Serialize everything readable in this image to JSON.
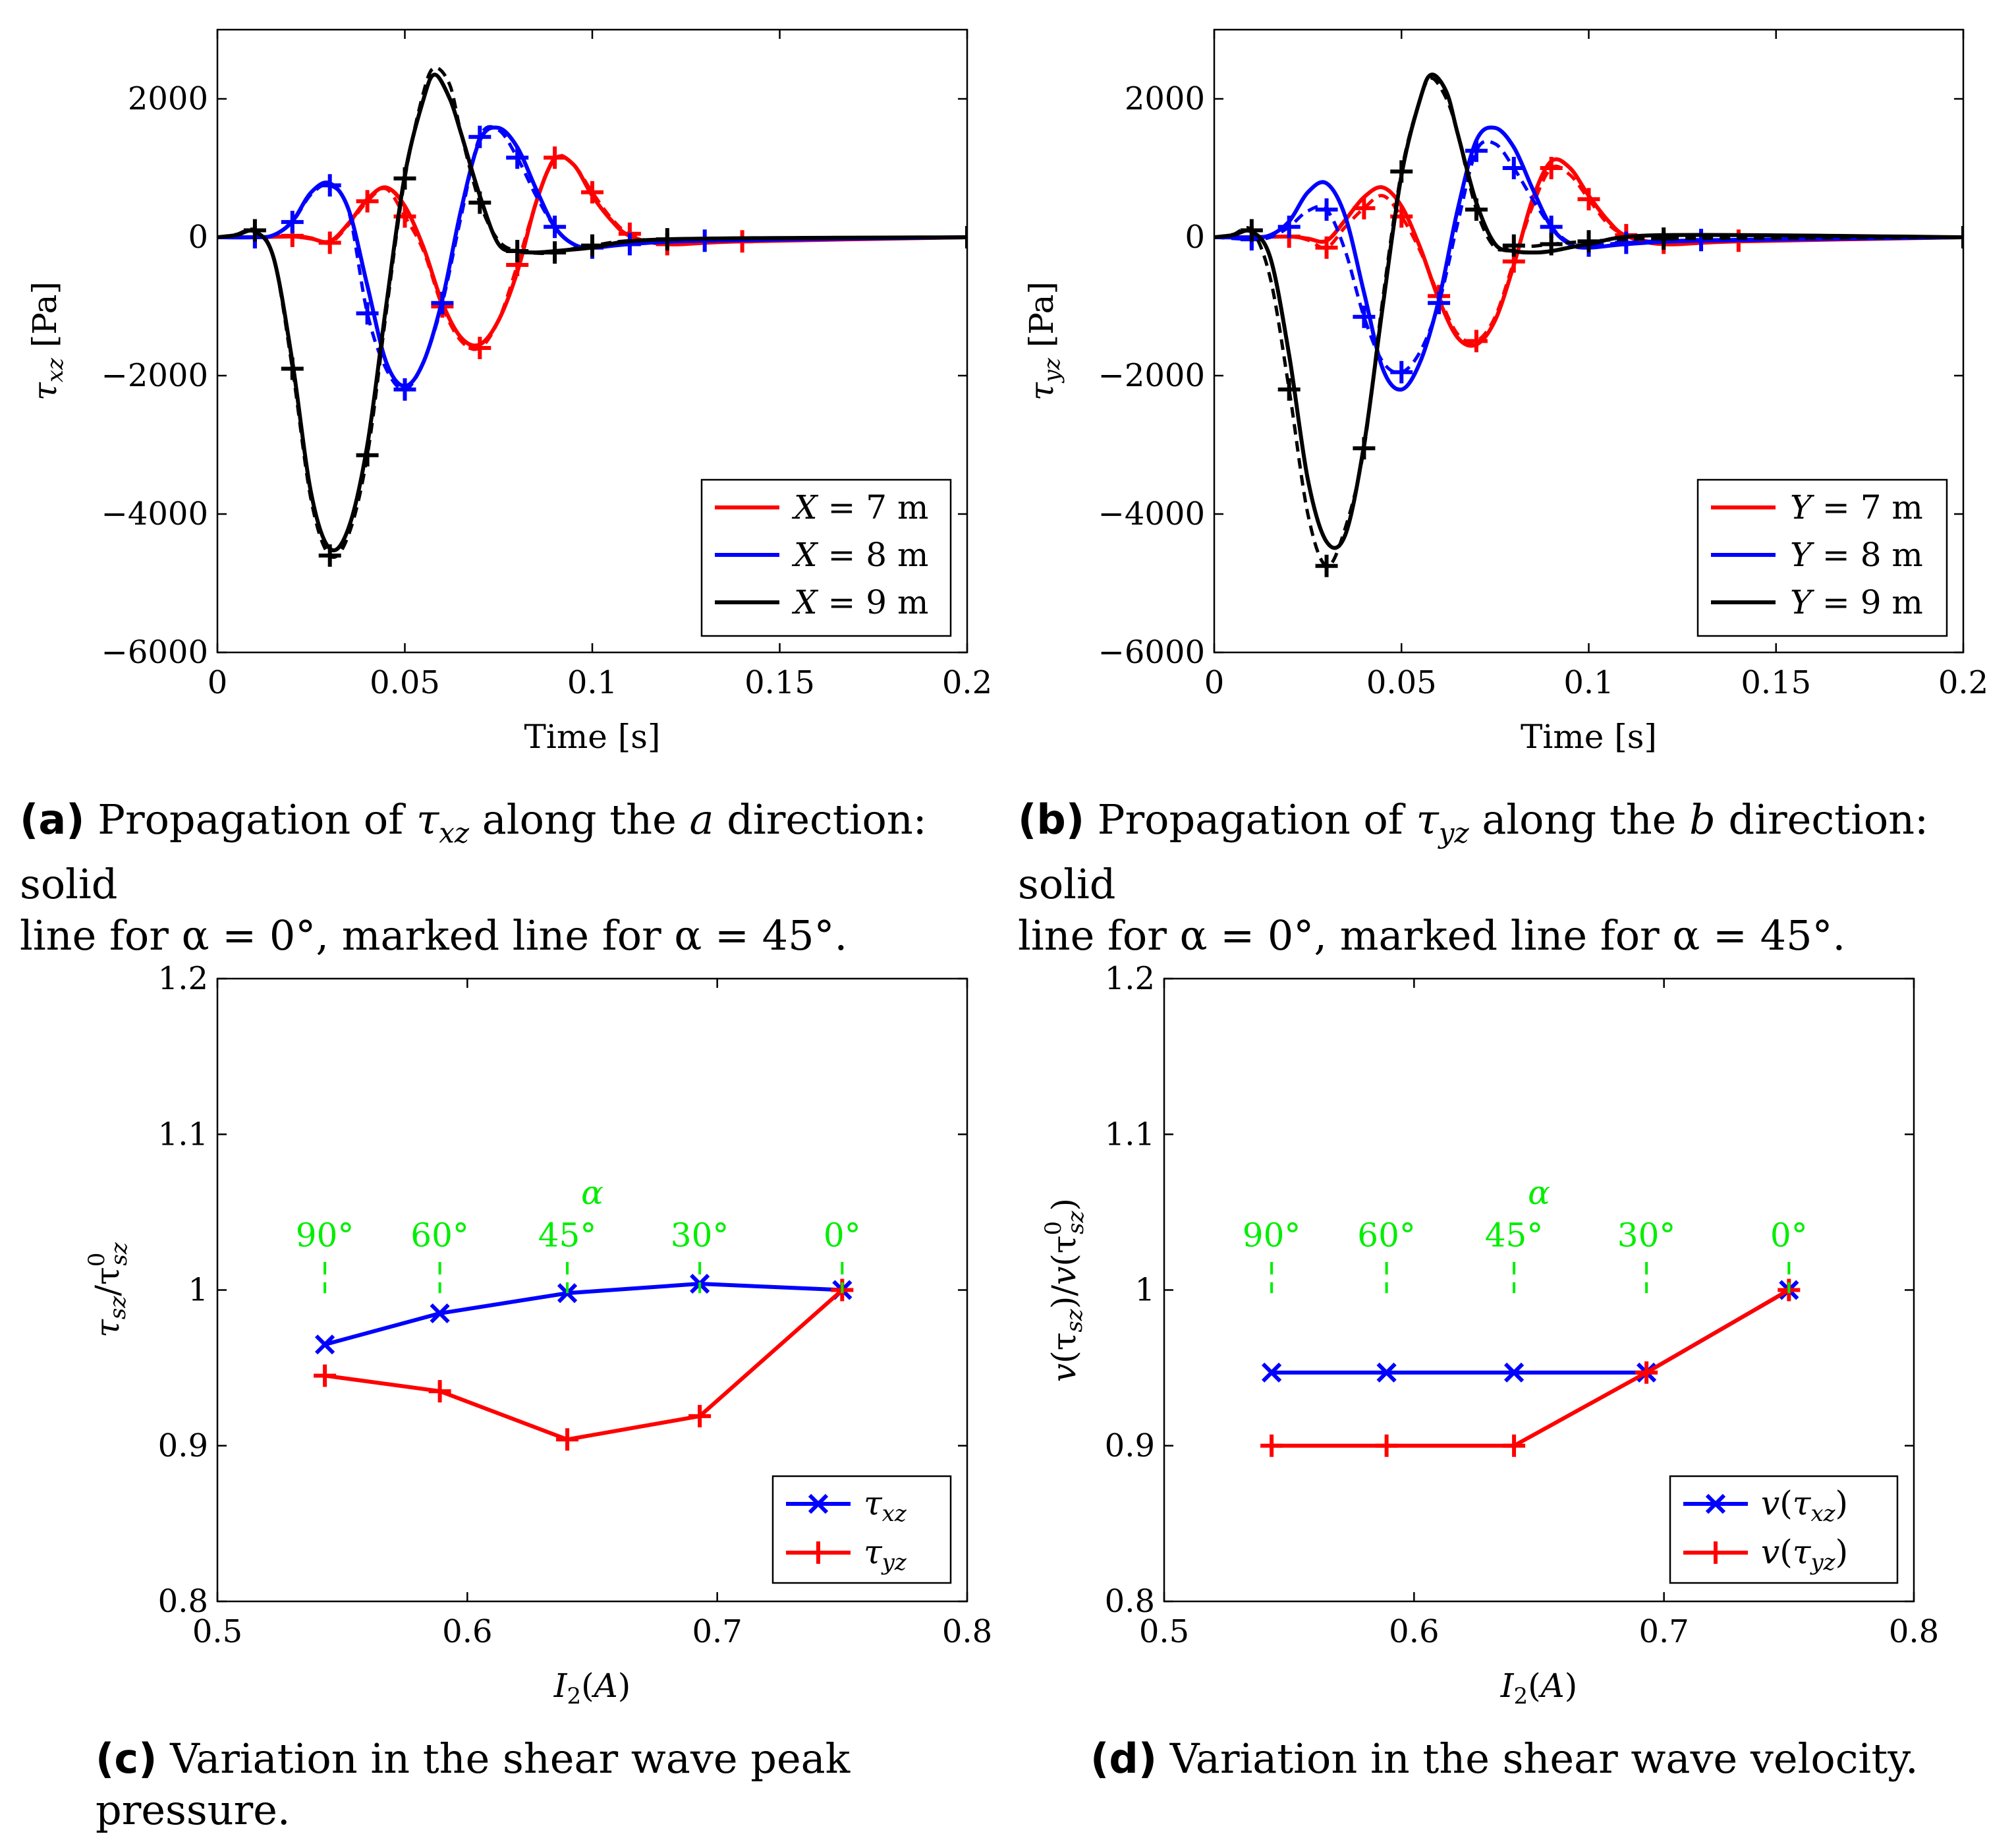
{
  "colors": {
    "red": "#ff0000",
    "blue": "#0000ff",
    "black": "#000000",
    "green": "#00ee00"
  },
  "chart_data": [
    {
      "id": "a",
      "type": "line",
      "xlabel": "Time [s]",
      "ylabel": "τ_xz [Pa]",
      "ylabel_main": "τ",
      "ylabel_sub": "xz",
      "ylabel_unit": "[Pa]",
      "xlim": [
        0,
        0.2
      ],
      "ylim": [
        -6000,
        3000
      ],
      "xticks": [
        0,
        0.05,
        0.1,
        0.15,
        0.2
      ],
      "xtick_labels": [
        "0",
        "0.05",
        "0.1",
        "0.15",
        "0.2"
      ],
      "yticks": [
        -6000,
        -4000,
        -2000,
        0,
        2000
      ],
      "ytick_labels": [
        "−6000",
        "−4000",
        "−2000",
        "0",
        "2000"
      ],
      "legend_position": "bottom-right",
      "legend": [
        "X = 7 m",
        "X = 8 m",
        "X = 9 m"
      ],
      "legend_var": "X",
      "legend_vals": [
        "= 7 m",
        "= 8 m",
        "= 9 m"
      ],
      "series": [
        {
          "name": "X = 7 m, α = 0°",
          "color": "red",
          "style": "solid",
          "x": [
            0,
            0.01,
            0.02,
            0.025,
            0.03,
            0.035,
            0.04,
            0.045,
            0.05,
            0.055,
            0.06,
            0.065,
            0.07,
            0.075,
            0.08,
            0.085,
            0.09,
            0.095,
            0.1,
            0.105,
            0.11,
            0.12,
            0.14,
            0.2
          ],
          "y": [
            0,
            0,
            10,
            -20,
            -60,
            200,
            550,
            720,
            450,
            -150,
            -950,
            -1450,
            -1550,
            -1200,
            -500,
            500,
            1130,
            1050,
            600,
            250,
            20,
            -100,
            -60,
            0
          ]
        },
        {
          "name": "X = 7 m, α = 45°",
          "color": "red",
          "style": "dashed",
          "marker": "+",
          "x": [
            0,
            0.01,
            0.02,
            0.025,
            0.03,
            0.035,
            0.04,
            0.045,
            0.05,
            0.055,
            0.06,
            0.065,
            0.07,
            0.075,
            0.08,
            0.085,
            0.09,
            0.095,
            0.1,
            0.105,
            0.11,
            0.12,
            0.14,
            0.2
          ],
          "y": [
            0,
            0,
            20,
            -10,
            -80,
            180,
            520,
            700,
            300,
            -200,
            -1000,
            -1500,
            -1600,
            -1200,
            -400,
            500,
            1150,
            1050,
            650,
            280,
            50,
            -100,
            -60,
            0
          ]
        },
        {
          "name": "X = 8 m, α = 0°",
          "color": "blue",
          "style": "solid",
          "x": [
            0,
            0.01,
            0.015,
            0.02,
            0.025,
            0.03,
            0.035,
            0.04,
            0.045,
            0.05,
            0.055,
            0.06,
            0.065,
            0.07,
            0.075,
            0.08,
            0.085,
            0.09,
            0.095,
            0.1,
            0.11,
            0.13,
            0.2
          ],
          "y": [
            0,
            0,
            30,
            230,
            650,
            780,
            400,
            -700,
            -1800,
            -2150,
            -1800,
            -900,
            400,
            1400,
            1580,
            1300,
            700,
            150,
            -100,
            -150,
            -100,
            -50,
            0
          ]
        },
        {
          "name": "X = 8 m, α = 45°",
          "color": "blue",
          "style": "dashed",
          "marker": "+",
          "x": [
            0,
            0.01,
            0.015,
            0.02,
            0.025,
            0.03,
            0.035,
            0.04,
            0.045,
            0.05,
            0.055,
            0.06,
            0.065,
            0.07,
            0.075,
            0.08,
            0.085,
            0.09,
            0.095,
            0.1,
            0.11,
            0.13,
            0.2
          ],
          "y": [
            0,
            0,
            30,
            220,
            620,
            750,
            380,
            -1100,
            -1900,
            -2200,
            -1800,
            -950,
            300,
            1450,
            1550,
            1150,
            600,
            150,
            -100,
            -150,
            -100,
            -50,
            0
          ]
        },
        {
          "name": "X = 9 m, α = 0°",
          "color": "black",
          "style": "solid",
          "x": [
            0,
            0.005,
            0.01,
            0.015,
            0.02,
            0.025,
            0.03,
            0.035,
            0.04,
            0.045,
            0.05,
            0.055,
            0.058,
            0.062,
            0.065,
            0.07,
            0.075,
            0.08,
            0.085,
            0.09,
            0.1,
            0.12,
            0.2
          ],
          "y": [
            0,
            30,
            80,
            -300,
            -1800,
            -3700,
            -4500,
            -4200,
            -3000,
            -1000,
            900,
            2000,
            2350,
            2000,
            1500,
            600,
            -100,
            -200,
            -220,
            -200,
            -150,
            -30,
            0
          ]
        },
        {
          "name": "X = 9 m, α = 45°",
          "color": "black",
          "style": "dashed",
          "marker": "+",
          "x": [
            0,
            0.005,
            0.01,
            0.015,
            0.02,
            0.025,
            0.03,
            0.035,
            0.04,
            0.045,
            0.05,
            0.055,
            0.058,
            0.062,
            0.065,
            0.07,
            0.075,
            0.08,
            0.085,
            0.09,
            0.1,
            0.12,
            0.2
          ],
          "y": [
            0,
            40,
            100,
            -300,
            -1900,
            -3800,
            -4600,
            -4300,
            -3150,
            -1100,
            850,
            2100,
            2450,
            2200,
            1500,
            500,
            -50,
            -200,
            -230,
            -220,
            -120,
            -30,
            0
          ]
        }
      ]
    },
    {
      "id": "b",
      "type": "line",
      "xlabel": "Time [s]",
      "ylabel": "τ_yz [Pa]",
      "ylabel_main": "τ",
      "ylabel_sub": "yz",
      "ylabel_unit": "[Pa]",
      "xlim": [
        0,
        0.2
      ],
      "ylim": [
        -6000,
        3000
      ],
      "xticks": [
        0,
        0.05,
        0.1,
        0.15,
        0.2
      ],
      "xtick_labels": [
        "0",
        "0.05",
        "0.1",
        "0.15",
        "0.2"
      ],
      "yticks": [
        -6000,
        -4000,
        -2000,
        0,
        2000
      ],
      "ytick_labels": [
        "−6000",
        "−4000",
        "−2000",
        "0",
        "2000"
      ],
      "legend_position": "bottom-right",
      "legend": [
        "Y = 7 m",
        "Y = 8 m",
        "Y = 9 m"
      ],
      "legend_var": "Y",
      "legend_vals": [
        "= 7 m",
        "= 8 m",
        "= 9 m"
      ],
      "series": [
        {
          "name": "Y = 7 m, α = 0°",
          "color": "red",
          "style": "solid",
          "x": [
            0,
            0.01,
            0.02,
            0.025,
            0.03,
            0.035,
            0.04,
            0.045,
            0.05,
            0.055,
            0.06,
            0.065,
            0.07,
            0.075,
            0.08,
            0.085,
            0.09,
            0.095,
            0.1,
            0.105,
            0.11,
            0.12,
            0.14,
            0.2
          ],
          "y": [
            0,
            0,
            10,
            -20,
            -50,
            250,
            580,
            720,
            450,
            -150,
            -900,
            -1450,
            -1550,
            -1200,
            -400,
            550,
            1100,
            1000,
            600,
            250,
            20,
            -100,
            -60,
            0
          ]
        },
        {
          "name": "Y = 7 m, α = 45°",
          "color": "red",
          "style": "dashed",
          "marker": "+",
          "x": [
            0,
            0.01,
            0.02,
            0.025,
            0.03,
            0.035,
            0.04,
            0.045,
            0.05,
            0.055,
            0.06,
            0.065,
            0.07,
            0.075,
            0.08,
            0.085,
            0.09,
            0.095,
            0.1,
            0.105,
            0.11,
            0.12,
            0.14,
            0.2
          ],
          "y": [
            0,
            0,
            10,
            -40,
            -150,
            150,
            420,
            600,
            300,
            -200,
            -850,
            -1400,
            -1500,
            -1150,
            -350,
            450,
            1000,
            900,
            550,
            200,
            30,
            -80,
            -50,
            0
          ]
        },
        {
          "name": "Y = 8 m, α = 0°",
          "color": "blue",
          "style": "solid",
          "x": [
            0,
            0.01,
            0.015,
            0.02,
            0.025,
            0.03,
            0.035,
            0.04,
            0.045,
            0.05,
            0.055,
            0.06,
            0.065,
            0.07,
            0.075,
            0.08,
            0.085,
            0.09,
            0.095,
            0.1,
            0.11,
            0.13,
            0.2
          ],
          "y": [
            0,
            0,
            30,
            230,
            650,
            780,
            300,
            -800,
            -1900,
            -2200,
            -1800,
            -900,
            400,
            1400,
            1580,
            1300,
            700,
            150,
            -100,
            -150,
            -100,
            -50,
            0
          ]
        },
        {
          "name": "Y = 8 m, α = 45°",
          "color": "blue",
          "style": "dashed",
          "marker": "+",
          "x": [
            0,
            0.01,
            0.015,
            0.02,
            0.025,
            0.03,
            0.035,
            0.04,
            0.045,
            0.05,
            0.055,
            0.06,
            0.065,
            0.07,
            0.075,
            0.08,
            0.085,
            0.09,
            0.095,
            0.1,
            0.11,
            0.13,
            0.2
          ],
          "y": [
            0,
            -30,
            0,
            150,
            380,
            400,
            -200,
            -1150,
            -1800,
            -1950,
            -1650,
            -950,
            200,
            1250,
            1350,
            1000,
            550,
            150,
            -80,
            -120,
            -80,
            -40,
            0
          ]
        },
        {
          "name": "Y = 9 m, α = 0°",
          "color": "black",
          "style": "solid",
          "x": [
            0,
            0.005,
            0.01,
            0.015,
            0.02,
            0.025,
            0.03,
            0.035,
            0.04,
            0.045,
            0.05,
            0.055,
            0.058,
            0.062,
            0.065,
            0.07,
            0.075,
            0.08,
            0.085,
            0.09,
            0.1,
            0.12,
            0.2
          ],
          "y": [
            0,
            30,
            80,
            -300,
            -1700,
            -3500,
            -4400,
            -4300,
            -3000,
            -1000,
            900,
            2000,
            2350,
            2100,
            1500,
            500,
            -100,
            -200,
            -220,
            -200,
            -100,
            30,
            0
          ]
        },
        {
          "name": "Y = 9 m, α = 45°",
          "color": "black",
          "style": "dashed",
          "marker": "+",
          "x": [
            0,
            0.005,
            0.01,
            0.015,
            0.02,
            0.025,
            0.03,
            0.035,
            0.04,
            0.045,
            0.05,
            0.055,
            0.058,
            0.062,
            0.065,
            0.07,
            0.075,
            0.08,
            0.085,
            0.09,
            0.1,
            0.12,
            0.2
          ],
          "y": [
            0,
            40,
            100,
            -600,
            -2200,
            -4000,
            -4750,
            -4200,
            -3050,
            -900,
            950,
            2000,
            2300,
            2000,
            1500,
            400,
            -150,
            -120,
            -130,
            -100,
            -60,
            -20,
            0
          ]
        }
      ]
    },
    {
      "id": "c",
      "type": "line",
      "xlabel": "I_2(A)",
      "ylabel": "τ_sz/τ^0_sz",
      "xlim": [
        0.5,
        0.8
      ],
      "ylim": [
        0.8,
        1.2
      ],
      "xticks": [
        0.5,
        0.6,
        0.7,
        0.8
      ],
      "xtick_labels": [
        "0.5",
        "0.6",
        "0.7",
        "0.8"
      ],
      "yticks": [
        0.8,
        0.9,
        1.0,
        1.1,
        1.2
      ],
      "ytick_labels": [
        "0.8",
        "0.9",
        "1",
        "1.1",
        "1.2"
      ],
      "legend_position": "bottom-right",
      "alpha_label": "α",
      "alpha_marks": {
        "x": [
          0.543,
          0.589,
          0.64,
          0.693,
          0.75
        ],
        "labels": [
          "90°",
          "60°",
          "45°",
          "30°",
          "0°"
        ],
        "y": 1.01
      },
      "series": [
        {
          "name": "τ_xz",
          "color": "blue",
          "marker": "x",
          "x": [
            0.543,
            0.589,
            0.64,
            0.693,
            0.75
          ],
          "y": [
            0.965,
            0.985,
            0.998,
            1.004,
            1.0
          ]
        },
        {
          "name": "τ_yz",
          "color": "red",
          "marker": "+",
          "x": [
            0.543,
            0.589,
            0.64,
            0.693,
            0.75
          ],
          "y": [
            0.945,
            0.935,
            0.904,
            0.919,
            1.0
          ]
        }
      ]
    },
    {
      "id": "d",
      "type": "line",
      "xlabel": "I_2(A)",
      "ylabel": "v(τ_sz)/v(τ^0_sz)",
      "xlim": [
        0.5,
        0.8
      ],
      "ylim": [
        0.8,
        1.2
      ],
      "xticks": [
        0.5,
        0.6,
        0.7,
        0.8
      ],
      "xtick_labels": [
        "0.5",
        "0.6",
        "0.7",
        "0.8"
      ],
      "yticks": [
        0.8,
        0.9,
        1.0,
        1.1,
        1.2
      ],
      "ytick_labels": [
        "0.8",
        "0.9",
        "1",
        "1.1",
        "1.2"
      ],
      "legend_position": "bottom-right",
      "alpha_label": "α",
      "alpha_marks": {
        "x": [
          0.543,
          0.589,
          0.64,
          0.693,
          0.75
        ],
        "labels": [
          "90°",
          "60°",
          "45°",
          "30°",
          "0°"
        ],
        "y": 1.01
      },
      "series": [
        {
          "name": "v(τ_xz)",
          "color": "blue",
          "marker": "x",
          "x": [
            0.543,
            0.589,
            0.64,
            0.693,
            0.75
          ],
          "y": [
            0.947,
            0.947,
            0.947,
            0.947,
            1.0
          ]
        },
        {
          "name": "v(τ_yz)",
          "color": "red",
          "marker": "+",
          "x": [
            0.543,
            0.589,
            0.64,
            0.693,
            0.75
          ],
          "y": [
            0.9,
            0.9,
            0.9,
            0.947,
            1.0
          ]
        }
      ]
    }
  ],
  "captions": {
    "a": {
      "label": "(a)",
      "line1a": "Propagation of",
      "sym": "τ",
      "sub": "xz",
      "line1b": "along the",
      "dir": "a",
      "line1c": "direction: solid",
      "line2a": "line for",
      "alpha0": "α = 0°",
      "line2b": ", marked line for",
      "alpha45": "α = 45°",
      "line2c": "."
    },
    "b": {
      "label": "(b)",
      "line1a": "Propagation of",
      "sym": "τ",
      "sub": "yz",
      "line1b": "along the",
      "dir": "b",
      "line1c": "direction: solid",
      "line2a": "line for",
      "alpha0": "α = 0°",
      "line2b": ", marked line for",
      "alpha45": "α = 45°",
      "line2c": "."
    },
    "c": {
      "label": "(c)",
      "text": "Variation in the shear wave peak pressure."
    },
    "d": {
      "label": "(d)",
      "text": "Variation in the shear wave velocity."
    }
  }
}
